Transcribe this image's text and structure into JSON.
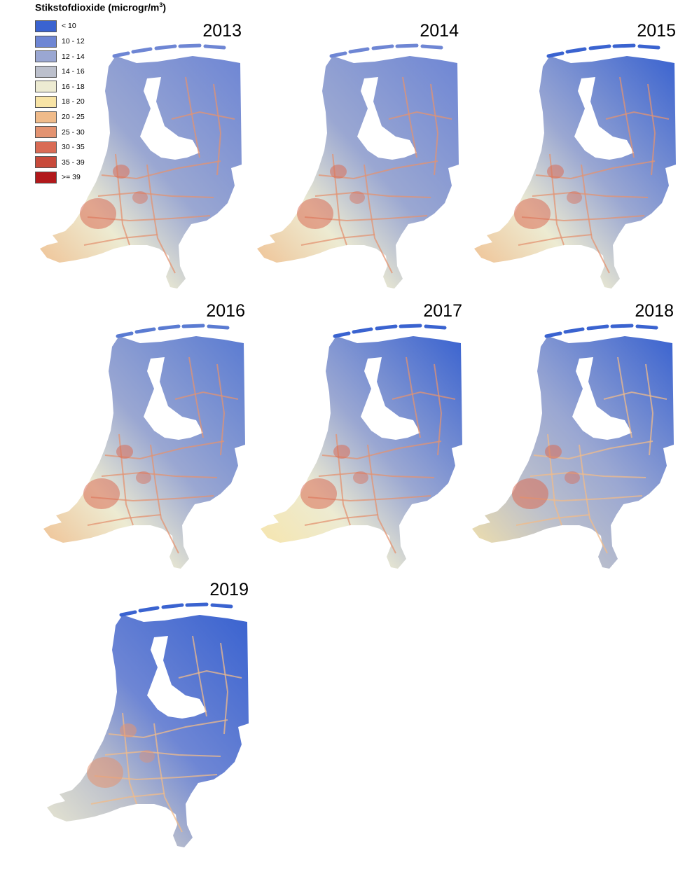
{
  "legend": {
    "title": "Stikstofdioxide (microgr/m",
    "title_sup": "3",
    "title_close": ")",
    "classes": [
      {
        "label": "< 10",
        "color": "#3a63d0"
      },
      {
        "label": "10 - 12",
        "color": "#6e86d4"
      },
      {
        "label": "12 - 14",
        "color": "#9aa7d2"
      },
      {
        "label": "14 - 16",
        "color": "#bcc0cc"
      },
      {
        "label": "16 - 18",
        "color": "#edebd2"
      },
      {
        "label": "18 - 20",
        "color": "#f8e4a6"
      },
      {
        "label": "20 - 25",
        "color": "#f0bb8a"
      },
      {
        "label": "25 - 30",
        "color": "#e39371"
      },
      {
        "label": "30 - 35",
        "color": "#d96b55"
      },
      {
        "label": "35 - 39",
        "color": "#c84a3b"
      },
      {
        "label": ">= 39",
        "color": "#b2181b"
      }
    ]
  },
  "maps": [
    {
      "year": "2013",
      "north": "#6e86d4",
      "east": "#9aa7d2",
      "south": "#edebd2",
      "west": "#f0bb8a",
      "roads": "#e39371",
      "hot": "#d96b55"
    },
    {
      "year": "2014",
      "north": "#6e86d4",
      "east": "#9aa7d2",
      "south": "#edebd2",
      "west": "#f0bb8a",
      "roads": "#e39371",
      "hot": "#d96b55"
    },
    {
      "year": "2015",
      "north": "#3a63d0",
      "east": "#9aa7d2",
      "south": "#edebd2",
      "west": "#f0bb8a",
      "roads": "#e39371",
      "hot": "#d96b55"
    },
    {
      "year": "2016",
      "north": "#5a7bd2",
      "east": "#9aa7d2",
      "south": "#edebd2",
      "west": "#f0bb8a",
      "roads": "#e39371",
      "hot": "#d96b55"
    },
    {
      "year": "2017",
      "north": "#3a63d0",
      "east": "#9aa7d2",
      "south": "#edebd2",
      "west": "#f8e4a6",
      "roads": "#e39371",
      "hot": "#d96b55"
    },
    {
      "year": "2018",
      "north": "#3a63d0",
      "east": "#9aa7d2",
      "south": "#bcc0cc",
      "west": "#f8e4a6",
      "roads": "#f0bb8a",
      "hot": "#d96b55"
    },
    {
      "year": "2019",
      "north": "#3a63d0",
      "east": "#6e86d4",
      "south": "#bcc0cc",
      "west": "#edebd2",
      "roads": "#f0bb8a",
      "hot": "#e39371"
    }
  ]
}
